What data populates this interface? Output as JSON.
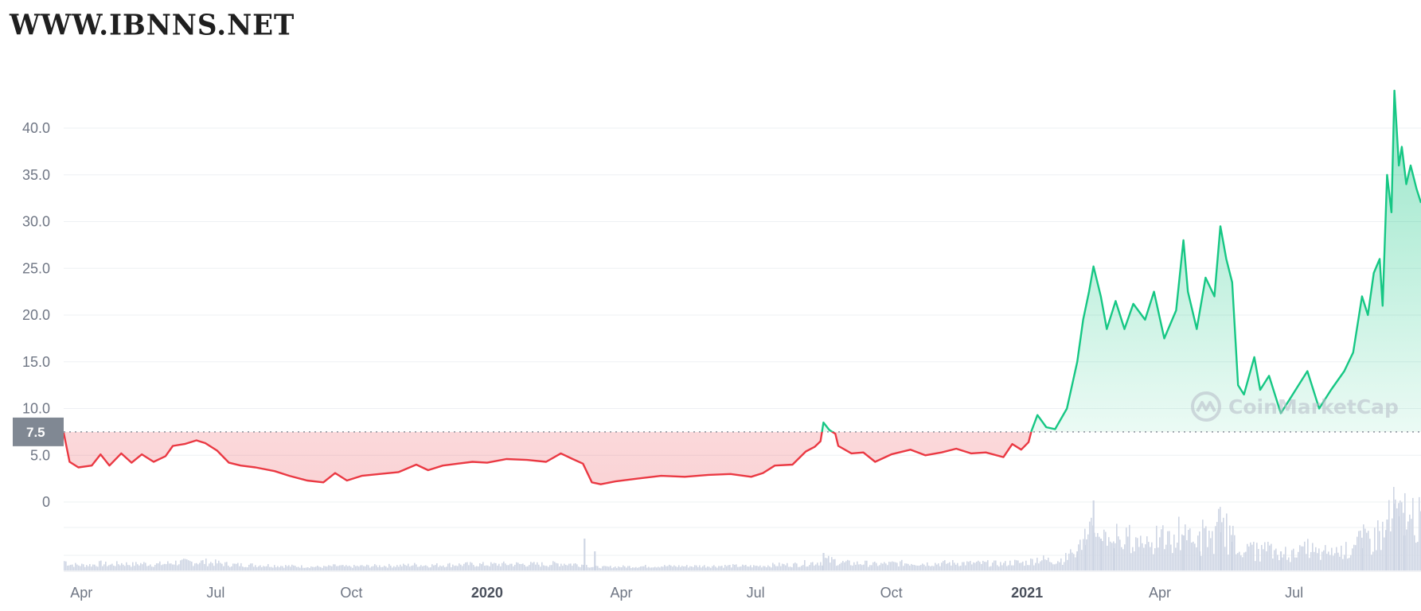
{
  "watermark": {
    "site": "WWW.IBNNS.NET",
    "brand": "CoinMarketCap",
    "brand_icon": "coinmarketcap-logo-icon"
  },
  "colors": {
    "up": "#16c784",
    "down": "#ea3943",
    "volume": "#cfd6e4",
    "grid": "#eef0f3",
    "axis_text": "#6f7684"
  },
  "chart_data": {
    "type": "area",
    "title": "",
    "baseline_value": 7.5,
    "current_label": "7.5",
    "ylim": [
      0,
      43
    ],
    "y_ticks": [
      {
        "v": 0,
        "label": "0"
      },
      {
        "v": 5,
        "label": "5.0"
      },
      {
        "v": 10,
        "label": "10.0"
      },
      {
        "v": 15,
        "label": "15.0"
      },
      {
        "v": 20,
        "label": "20.0"
      },
      {
        "v": 25,
        "label": "25.0"
      },
      {
        "v": 30,
        "label": "30.0"
      },
      {
        "v": 35,
        "label": "35.0"
      },
      {
        "v": 40,
        "label": "40.0"
      }
    ],
    "x_ticks": [
      {
        "date": "2019-04-01",
        "label": "Apr",
        "year": false
      },
      {
        "date": "2019-07-01",
        "label": "Jul",
        "year": false
      },
      {
        "date": "2019-10-01",
        "label": "Oct",
        "year": false
      },
      {
        "date": "2020-01-01",
        "label": "2020",
        "year": true
      },
      {
        "date": "2020-04-01",
        "label": "Apr",
        "year": false
      },
      {
        "date": "2020-07-01",
        "label": "Jul",
        "year": false
      },
      {
        "date": "2020-10-01",
        "label": "Oct",
        "year": false
      },
      {
        "date": "2021-01-01",
        "label": "2021",
        "year": true
      },
      {
        "date": "2021-04-01",
        "label": "Apr",
        "year": false
      },
      {
        "date": "2021-07-01",
        "label": "Jul",
        "year": false
      }
    ],
    "x_range": [
      "2019-03-20",
      "2021-09-25"
    ],
    "grid": true,
    "series": [
      {
        "values": [
          [
            "2019-03-20",
            7.4
          ],
          [
            "2019-03-24",
            4.3
          ],
          [
            "2019-03-30",
            3.7
          ],
          [
            "2019-04-08",
            3.9
          ],
          [
            "2019-04-14",
            5.1
          ],
          [
            "2019-04-20",
            3.9
          ],
          [
            "2019-04-28",
            5.2
          ],
          [
            "2019-05-05",
            4.2
          ],
          [
            "2019-05-12",
            5.1
          ],
          [
            "2019-05-20",
            4.3
          ],
          [
            "2019-05-28",
            4.9
          ],
          [
            "2019-06-02",
            6.0
          ],
          [
            "2019-06-10",
            6.2
          ],
          [
            "2019-06-18",
            6.6
          ],
          [
            "2019-06-24",
            6.3
          ],
          [
            "2019-07-02",
            5.5
          ],
          [
            "2019-07-10",
            4.2
          ],
          [
            "2019-07-18",
            3.9
          ],
          [
            "2019-07-28",
            3.7
          ],
          [
            "2019-08-10",
            3.3
          ],
          [
            "2019-08-20",
            2.8
          ],
          [
            "2019-09-01",
            2.3
          ],
          [
            "2019-09-12",
            2.1
          ],
          [
            "2019-09-20",
            3.1
          ],
          [
            "2019-09-28",
            2.3
          ],
          [
            "2019-10-08",
            2.8
          ],
          [
            "2019-10-20",
            3.0
          ],
          [
            "2019-11-02",
            3.2
          ],
          [
            "2019-11-14",
            4.0
          ],
          [
            "2019-11-22",
            3.4
          ],
          [
            "2019-12-02",
            3.9
          ],
          [
            "2019-12-12",
            4.1
          ],
          [
            "2019-12-22",
            4.3
          ],
          [
            "2020-01-01",
            4.2
          ],
          [
            "2020-01-14",
            4.6
          ],
          [
            "2020-01-28",
            4.5
          ],
          [
            "2020-02-10",
            4.3
          ],
          [
            "2020-02-20",
            5.2
          ],
          [
            "2020-02-28",
            4.6
          ],
          [
            "2020-03-06",
            4.1
          ],
          [
            "2020-03-12",
            2.1
          ],
          [
            "2020-03-18",
            1.9
          ],
          [
            "2020-03-28",
            2.2
          ],
          [
            "2020-04-12",
            2.5
          ],
          [
            "2020-04-28",
            2.8
          ],
          [
            "2020-05-14",
            2.7
          ],
          [
            "2020-05-30",
            2.9
          ],
          [
            "2020-06-14",
            3.0
          ],
          [
            "2020-06-28",
            2.7
          ],
          [
            "2020-07-06",
            3.1
          ],
          [
            "2020-07-14",
            3.9
          ],
          [
            "2020-07-26",
            4.0
          ],
          [
            "2020-08-04",
            5.4
          ],
          [
            "2020-08-10",
            5.9
          ],
          [
            "2020-08-14",
            6.5
          ],
          [
            "2020-08-16",
            8.5
          ],
          [
            "2020-08-20",
            7.7
          ],
          [
            "2020-08-24",
            7.3
          ],
          [
            "2020-08-26",
            6.0
          ],
          [
            "2020-09-04",
            5.2
          ],
          [
            "2020-09-12",
            5.3
          ],
          [
            "2020-09-20",
            4.3
          ],
          [
            "2020-10-01",
            5.1
          ],
          [
            "2020-10-14",
            5.6
          ],
          [
            "2020-10-24",
            5.0
          ],
          [
            "2020-11-04",
            5.3
          ],
          [
            "2020-11-14",
            5.7
          ],
          [
            "2020-11-24",
            5.2
          ],
          [
            "2020-12-04",
            5.3
          ],
          [
            "2020-12-16",
            4.8
          ],
          [
            "2020-12-22",
            6.2
          ],
          [
            "2020-12-28",
            5.6
          ],
          [
            "2021-01-02",
            6.4
          ],
          [
            "2021-01-04",
            7.6
          ],
          [
            "2021-01-08",
            9.3
          ],
          [
            "2021-01-14",
            8.0
          ],
          [
            "2021-01-20",
            7.8
          ],
          [
            "2021-01-28",
            10.0
          ],
          [
            "2021-02-04",
            15.0
          ],
          [
            "2021-02-08",
            19.5
          ],
          [
            "2021-02-12",
            22.5
          ],
          [
            "2021-02-15",
            25.2
          ],
          [
            "2021-02-20",
            22.0
          ],
          [
            "2021-02-24",
            18.5
          ],
          [
            "2021-03-02",
            21.5
          ],
          [
            "2021-03-08",
            18.5
          ],
          [
            "2021-03-14",
            21.2
          ],
          [
            "2021-03-22",
            19.5
          ],
          [
            "2021-03-28",
            22.5
          ],
          [
            "2021-04-04",
            17.5
          ],
          [
            "2021-04-12",
            20.5
          ],
          [
            "2021-04-17",
            28.0
          ],
          [
            "2021-04-20",
            22.5
          ],
          [
            "2021-04-26",
            18.5
          ],
          [
            "2021-05-02",
            24.0
          ],
          [
            "2021-05-08",
            22.0
          ],
          [
            "2021-05-12",
            29.5
          ],
          [
            "2021-05-16",
            26.0
          ],
          [
            "2021-05-20",
            23.5
          ],
          [
            "2021-05-24",
            12.5
          ],
          [
            "2021-05-28",
            11.5
          ],
          [
            "2021-06-04",
            15.5
          ],
          [
            "2021-06-08",
            12.0
          ],
          [
            "2021-06-14",
            13.5
          ],
          [
            "2021-06-22",
            9.5
          ],
          [
            "2021-06-28",
            11.0
          ],
          [
            "2021-07-04",
            12.5
          ],
          [
            "2021-07-10",
            14.0
          ],
          [
            "2021-07-18",
            10.0
          ],
          [
            "2021-07-26",
            12.0
          ],
          [
            "2021-08-04",
            14.0
          ],
          [
            "2021-08-10",
            16.0
          ],
          [
            "2021-08-16",
            22.0
          ],
          [
            "2021-08-20",
            20.0
          ],
          [
            "2021-08-24",
            24.5
          ],
          [
            "2021-08-28",
            26.0
          ],
          [
            "2021-08-30",
            21.0
          ],
          [
            "2021-09-02",
            35.0
          ],
          [
            "2021-09-05",
            31.0
          ],
          [
            "2021-09-07",
            44.0
          ],
          [
            "2021-09-10",
            36.0
          ],
          [
            "2021-09-12",
            38.0
          ],
          [
            "2021-09-15",
            34.0
          ],
          [
            "2021-09-18",
            36.0
          ],
          [
            "2021-09-22",
            33.5
          ],
          [
            "2021-09-25",
            32.0
          ]
        ]
      }
    ],
    "volume_spikes": [
      [
        "2020-03-07",
        1.0
      ],
      [
        "2020-03-14",
        0.6
      ],
      [
        "2020-08-16",
        0.55
      ],
      [
        "2021-02-04",
        0.6
      ],
      [
        "2021-02-10",
        0.8
      ],
      [
        "2021-02-15",
        2.2
      ],
      [
        "2021-02-20",
        1.0
      ],
      [
        "2021-03-01",
        0.7
      ],
      [
        "2021-04-17",
        1.1
      ],
      [
        "2021-04-28",
        0.6
      ],
      [
        "2021-05-12",
        1.2
      ],
      [
        "2021-05-20",
        0.9
      ],
      [
        "2021-06-22",
        0.6
      ],
      [
        "2021-08-16",
        0.7
      ],
      [
        "2021-09-02",
        1.6
      ],
      [
        "2021-09-07",
        2.1
      ],
      [
        "2021-09-10",
        1.7
      ],
      [
        "2021-09-14",
        1.1
      ]
    ]
  }
}
